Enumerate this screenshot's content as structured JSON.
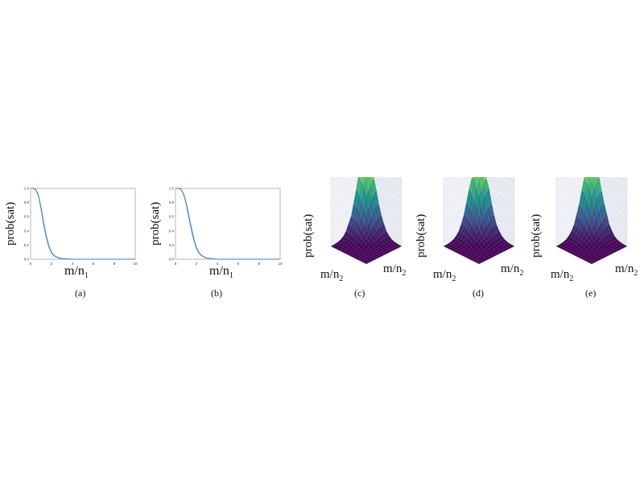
{
  "figure": {
    "y_label": "prob(sat)",
    "x_label_main": "m/n",
    "x_label_sub": "1",
    "z_x_label_main": "m/n",
    "z_x_label_sub": "2"
  },
  "captions": [
    "(a)",
    "(b)",
    "(c)",
    "(d)",
    "(e)"
  ],
  "colors": {
    "line": "#3a7bbf",
    "band": "#9cc3e6",
    "axes": "#888888",
    "surface_low": "#440154",
    "surface_mid": "#21918c",
    "surface_high": "#fde725"
  },
  "chart_data": [
    {
      "type": "line",
      "panel": "(a)",
      "x_ticks": [
        "0",
        "2",
        "4",
        "6",
        "8",
        "10"
      ],
      "y_ticks": [
        "0.0",
        "0.2",
        "0.4",
        "0.6",
        "0.8",
        "1.0"
      ],
      "xlim": [
        0,
        10
      ],
      "ylim": [
        0,
        1
      ],
      "ylabel": "prob(sat)",
      "xlabel": "m/n1",
      "series": [
        {
          "x": [
            0,
            0.25,
            0.5,
            0.75,
            1.0,
            1.25,
            1.5,
            1.75,
            2.0,
            2.25,
            2.5,
            2.75,
            3.0,
            3.5,
            4.0,
            5.0,
            6.0,
            8.0,
            10.0
          ],
          "values": [
            1.0,
            1.0,
            0.98,
            0.9,
            0.72,
            0.5,
            0.32,
            0.18,
            0.09,
            0.05,
            0.03,
            0.015,
            0.01,
            0.005,
            0.0,
            0.0,
            0.0,
            0.0,
            0.0
          ]
        }
      ]
    },
    {
      "type": "line",
      "panel": "(b)",
      "x_ticks": [
        "0",
        "2",
        "4",
        "6",
        "8",
        "10"
      ],
      "y_ticks": [
        "0.0",
        "0.2",
        "0.4",
        "0.6",
        "0.8",
        "1.0"
      ],
      "xlim": [
        0,
        10
      ],
      "ylim": [
        0,
        1
      ],
      "ylabel": "prob(sat)",
      "xlabel": "m/n1",
      "series": [
        {
          "x": [
            0,
            0.25,
            0.5,
            0.75,
            1.0,
            1.25,
            1.5,
            1.75,
            2.0,
            2.25,
            2.5,
            2.75,
            3.0,
            3.5,
            4.0,
            5.0,
            6.0,
            8.0,
            10.0
          ],
          "values": [
            1.0,
            1.0,
            0.99,
            0.93,
            0.8,
            0.62,
            0.44,
            0.28,
            0.16,
            0.09,
            0.05,
            0.03,
            0.015,
            0.007,
            0.0,
            0.0,
            0.0,
            0.0,
            0.0
          ]
        }
      ]
    },
    {
      "type": "heatmap",
      "panel": "(c)",
      "zlabel": "prob(sat)",
      "xlabel": "m/n1",
      "ylabel": "m/n2",
      "zlim": [
        0,
        1
      ]
    },
    {
      "type": "heatmap",
      "panel": "(d)",
      "zlabel": "prob(sat)",
      "xlabel": "m/n1",
      "ylabel": "m/n2",
      "zlim": [
        0,
        1
      ]
    },
    {
      "type": "heatmap",
      "panel": "(e)",
      "zlabel": "prob(sat)",
      "xlabel": "m/n1",
      "ylabel": "m/n2",
      "zlim": [
        0,
        1
      ]
    }
  ]
}
